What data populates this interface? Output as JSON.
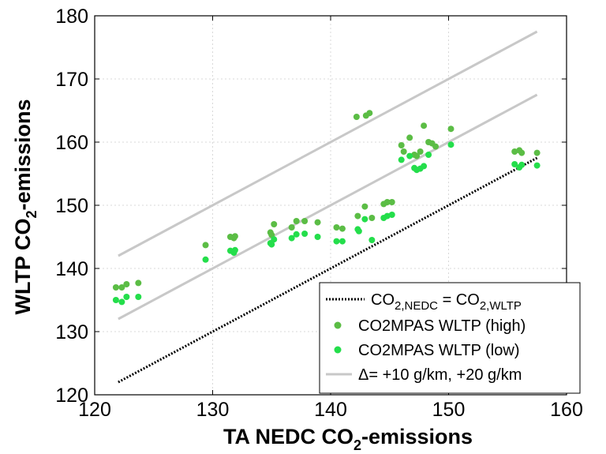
{
  "chart_data": {
    "type": "scatter",
    "xlabel": "TA NEDC CO",
    "xlabel_sub": "2",
    "xlabel_suffix": "-emissions",
    "ylabel": "WLTP CO",
    "ylabel_sub": "2",
    "ylabel_suffix": "-emissions",
    "xlim": [
      120,
      160
    ],
    "ylim": [
      120,
      180
    ],
    "xticks": [
      120,
      130,
      140,
      150,
      160
    ],
    "yticks": [
      120,
      130,
      140,
      150,
      160,
      170,
      180
    ],
    "grid": true,
    "legend_position": "bottom-right",
    "series": [
      {
        "name": "CO2MPAS WLTP (high)",
        "color": "#5bbd45",
        "points": [
          [
            121.8,
            137.0
          ],
          [
            122.3,
            137.0
          ],
          [
            122.7,
            137.5
          ],
          [
            123.7,
            137.7
          ],
          [
            129.4,
            143.7
          ],
          [
            131.5,
            145.0
          ],
          [
            131.8,
            144.8
          ],
          [
            131.9,
            145.1
          ],
          [
            134.9,
            145.7
          ],
          [
            135.0,
            145.3
          ],
          [
            135.2,
            147.0
          ],
          [
            136.7,
            146.5
          ],
          [
            137.1,
            147.5
          ],
          [
            137.8,
            147.5
          ],
          [
            138.9,
            147.3
          ],
          [
            140.5,
            146.5
          ],
          [
            141.0,
            146.3
          ],
          [
            142.3,
            148.3
          ],
          [
            142.2,
            164.0
          ],
          [
            142.9,
            149.8
          ],
          [
            143.0,
            164.2
          ],
          [
            143.3,
            164.6
          ],
          [
            143.5,
            148.0
          ],
          [
            144.5,
            150.2
          ],
          [
            144.8,
            150.5
          ],
          [
            145.2,
            150.5
          ],
          [
            146.0,
            159.5
          ],
          [
            146.2,
            158.5
          ],
          [
            146.7,
            160.7
          ],
          [
            147.1,
            158.0
          ],
          [
            147.3,
            157.8
          ],
          [
            147.6,
            158.5
          ],
          [
            147.9,
            162.6
          ],
          [
            148.3,
            160.0
          ],
          [
            148.6,
            159.8
          ],
          [
            148.9,
            159.3
          ],
          [
            150.2,
            162.1
          ],
          [
            155.6,
            158.5
          ],
          [
            156.0,
            158.7
          ],
          [
            156.2,
            158.3
          ],
          [
            157.5,
            158.3
          ]
        ]
      },
      {
        "name": "CO2MPAS WLTP (low)",
        "color": "#24de4b",
        "points": [
          [
            121.8,
            135.0
          ],
          [
            122.3,
            134.7
          ],
          [
            122.7,
            135.5
          ],
          [
            123.7,
            135.5
          ],
          [
            129.4,
            141.4
          ],
          [
            131.5,
            142.8
          ],
          [
            131.8,
            142.5
          ],
          [
            131.9,
            142.9
          ],
          [
            134.9,
            144.0
          ],
          [
            135.0,
            143.8
          ],
          [
            135.2,
            144.6
          ],
          [
            136.7,
            144.8
          ],
          [
            137.1,
            145.4
          ],
          [
            137.8,
            145.5
          ],
          [
            138.9,
            145.0
          ],
          [
            140.5,
            144.3
          ],
          [
            141.0,
            144.3
          ],
          [
            142.3,
            146.2
          ],
          [
            142.4,
            145.9
          ],
          [
            142.9,
            147.8
          ],
          [
            143.5,
            144.5
          ],
          [
            144.5,
            148.0
          ],
          [
            144.8,
            148.3
          ],
          [
            145.2,
            148.5
          ],
          [
            146.0,
            157.2
          ],
          [
            146.7,
            157.8
          ],
          [
            147.1,
            155.9
          ],
          [
            147.3,
            155.6
          ],
          [
            147.6,
            155.8
          ],
          [
            147.9,
            156.2
          ],
          [
            148.3,
            158.0
          ],
          [
            150.2,
            159.6
          ],
          [
            155.6,
            156.5
          ],
          [
            156.0,
            156.0
          ],
          [
            156.2,
            156.4
          ],
          [
            157.5,
            156.3
          ]
        ]
      },
      {
        "name": "CO2,NEDC = CO2,WLTP",
        "style": "dotted",
        "color": "#000000",
        "line": [
          [
            122,
            122
          ],
          [
            157.5,
            157.5
          ]
        ]
      },
      {
        "name": "Δ= +10 g/km, +20 g/km",
        "color": "#c8c8c8",
        "lines": [
          [
            [
              122,
              132
            ],
            [
              157.5,
              167.5
            ]
          ],
          [
            [
              122,
              142
            ],
            [
              157.5,
              177.5
            ]
          ]
        ]
      }
    ],
    "legend": {
      "entries": [
        {
          "label_main": "CO",
          "sub1": "2,NEDC",
          "mid": " = CO",
          "sub2": "2,WLTP",
          "marker": "dotted-line",
          "color": "#000000"
        },
        {
          "label": "CO2MPAS WLTP (high)",
          "marker": "dot",
          "color": "#5bbd45"
        },
        {
          "label": "CO2MPAS WLTP (low)",
          "marker": "dot",
          "color": "#24de4b"
        },
        {
          "label": "Δ= +10 g/km, +20 g/km",
          "marker": "line",
          "color": "#c8c8c8"
        }
      ]
    }
  }
}
